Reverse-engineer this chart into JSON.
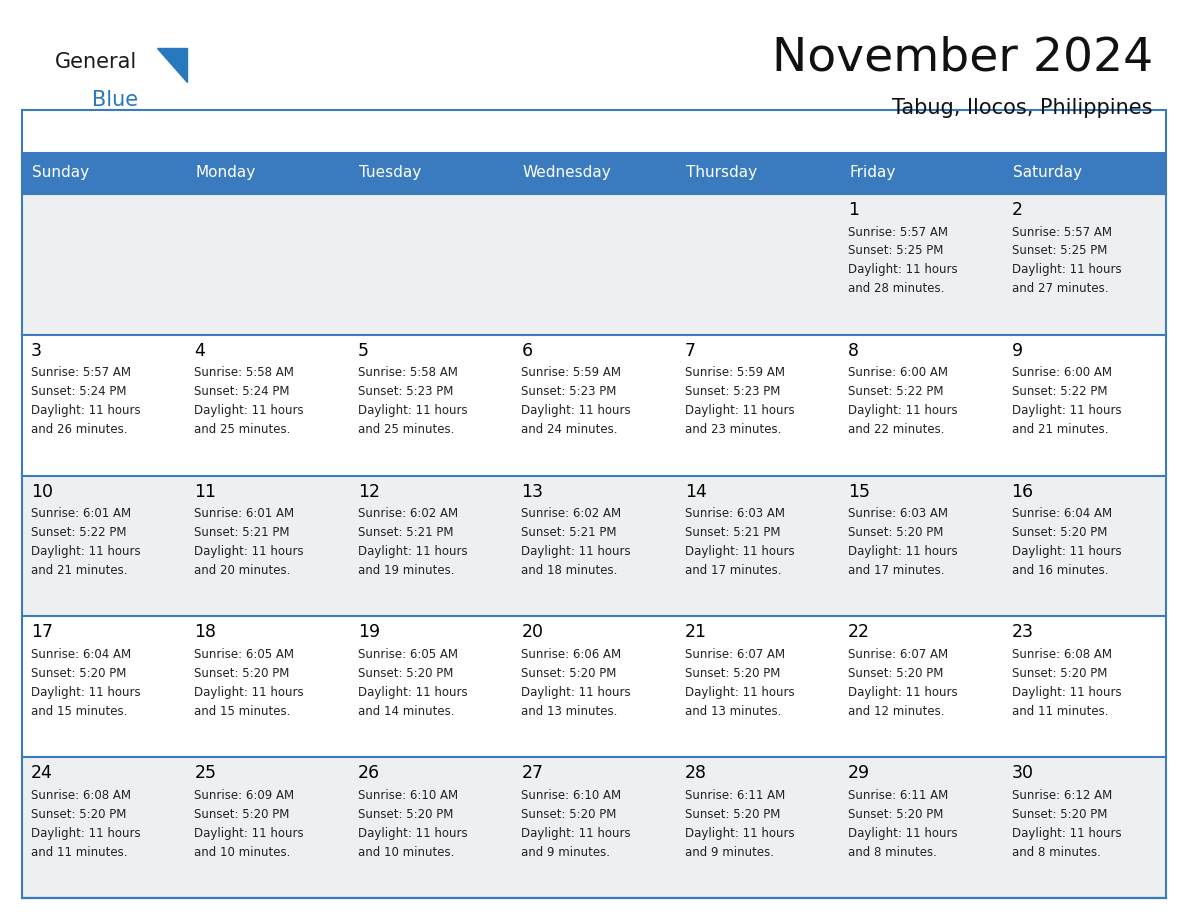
{
  "title": "November 2024",
  "subtitle": "Tabug, Ilocos, Philippines",
  "days_of_week": [
    "Sunday",
    "Monday",
    "Tuesday",
    "Wednesday",
    "Thursday",
    "Friday",
    "Saturday"
  ],
  "header_bg": "#3a7bbf",
  "header_text": "#FFFFFF",
  "cell_bg_light": "#eeeff0",
  "cell_bg_white": "#FFFFFF",
  "border_color": "#3a7bbf",
  "text_color": "#000000",
  "small_text_color": "#222222",
  "logo_general_color": "#1a1a1a",
  "logo_blue_color": "#2878be",
  "calendar_data": [
    [
      null,
      null,
      null,
      null,
      null,
      {
        "day": 1,
        "sunrise": "5:57 AM",
        "sunset": "5:25 PM",
        "daylight_min": "28"
      },
      {
        "day": 2,
        "sunrise": "5:57 AM",
        "sunset": "5:25 PM",
        "daylight_min": "27"
      }
    ],
    [
      {
        "day": 3,
        "sunrise": "5:57 AM",
        "sunset": "5:24 PM",
        "daylight_min": "26"
      },
      {
        "day": 4,
        "sunrise": "5:58 AM",
        "sunset": "5:24 PM",
        "daylight_min": "25"
      },
      {
        "day": 5,
        "sunrise": "5:58 AM",
        "sunset": "5:23 PM",
        "daylight_min": "25"
      },
      {
        "day": 6,
        "sunrise": "5:59 AM",
        "sunset": "5:23 PM",
        "daylight_min": "24"
      },
      {
        "day": 7,
        "sunrise": "5:59 AM",
        "sunset": "5:23 PM",
        "daylight_min": "23"
      },
      {
        "day": 8,
        "sunrise": "6:00 AM",
        "sunset": "5:22 PM",
        "daylight_min": "22"
      },
      {
        "day": 9,
        "sunrise": "6:00 AM",
        "sunset": "5:22 PM",
        "daylight_min": "21"
      }
    ],
    [
      {
        "day": 10,
        "sunrise": "6:01 AM",
        "sunset": "5:22 PM",
        "daylight_min": "21"
      },
      {
        "day": 11,
        "sunrise": "6:01 AM",
        "sunset": "5:21 PM",
        "daylight_min": "20"
      },
      {
        "day": 12,
        "sunrise": "6:02 AM",
        "sunset": "5:21 PM",
        "daylight_min": "19"
      },
      {
        "day": 13,
        "sunrise": "6:02 AM",
        "sunset": "5:21 PM",
        "daylight_min": "18"
      },
      {
        "day": 14,
        "sunrise": "6:03 AM",
        "sunset": "5:21 PM",
        "daylight_min": "17"
      },
      {
        "day": 15,
        "sunrise": "6:03 AM",
        "sunset": "5:20 PM",
        "daylight_min": "17"
      },
      {
        "day": 16,
        "sunrise": "6:04 AM",
        "sunset": "5:20 PM",
        "daylight_min": "16"
      }
    ],
    [
      {
        "day": 17,
        "sunrise": "6:04 AM",
        "sunset": "5:20 PM",
        "daylight_min": "15"
      },
      {
        "day": 18,
        "sunrise": "6:05 AM",
        "sunset": "5:20 PM",
        "daylight_min": "15"
      },
      {
        "day": 19,
        "sunrise": "6:05 AM",
        "sunset": "5:20 PM",
        "daylight_min": "14"
      },
      {
        "day": 20,
        "sunrise": "6:06 AM",
        "sunset": "5:20 PM",
        "daylight_min": "13"
      },
      {
        "day": 21,
        "sunrise": "6:07 AM",
        "sunset": "5:20 PM",
        "daylight_min": "13"
      },
      {
        "day": 22,
        "sunrise": "6:07 AM",
        "sunset": "5:20 PM",
        "daylight_min": "12"
      },
      {
        "day": 23,
        "sunrise": "6:08 AM",
        "sunset": "5:20 PM",
        "daylight_min": "11"
      }
    ],
    [
      {
        "day": 24,
        "sunrise": "6:08 AM",
        "sunset": "5:20 PM",
        "daylight_min": "11"
      },
      {
        "day": 25,
        "sunrise": "6:09 AM",
        "sunset": "5:20 PM",
        "daylight_min": "10"
      },
      {
        "day": 26,
        "sunrise": "6:10 AM",
        "sunset": "5:20 PM",
        "daylight_min": "10"
      },
      {
        "day": 27,
        "sunrise": "6:10 AM",
        "sunset": "5:20 PM",
        "daylight_min": "9"
      },
      {
        "day": 28,
        "sunrise": "6:11 AM",
        "sunset": "5:20 PM",
        "daylight_min": "9"
      },
      {
        "day": 29,
        "sunrise": "6:11 AM",
        "sunset": "5:20 PM",
        "daylight_min": "8"
      },
      {
        "day": 30,
        "sunrise": "6:12 AM",
        "sunset": "5:20 PM",
        "daylight_min": "8"
      }
    ]
  ]
}
